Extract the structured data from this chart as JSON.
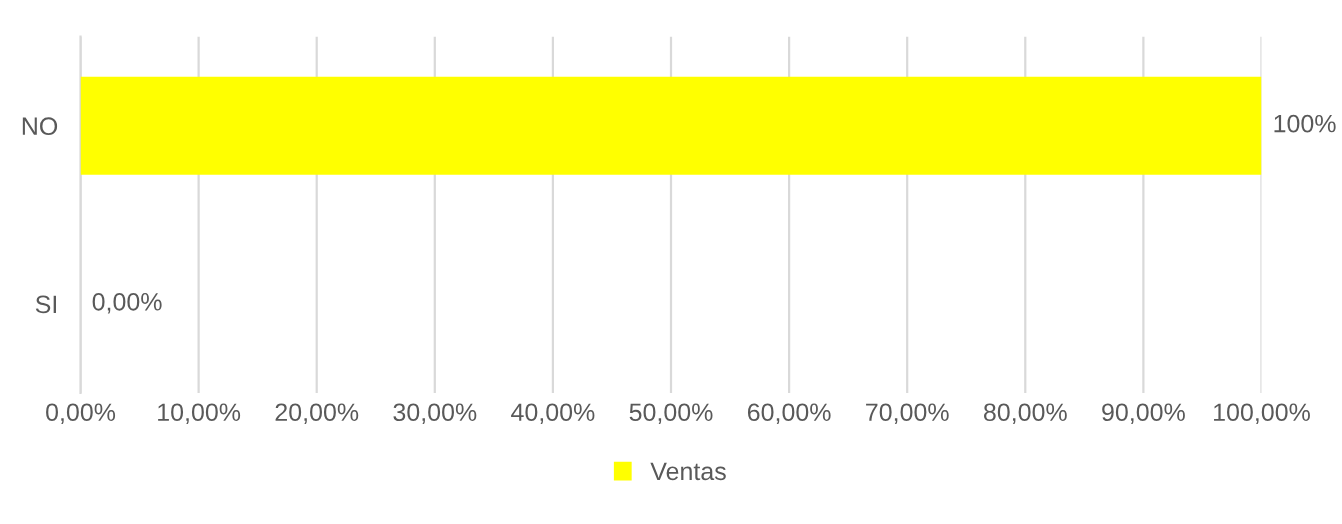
{
  "chart_data": {
    "type": "bar",
    "orientation": "horizontal",
    "categories": [
      "NO",
      "SI"
    ],
    "series": [
      {
        "name": "Ventas",
        "color": "#ffff00",
        "values": [
          100,
          0
        ],
        "value_labels": [
          "100%",
          "0,00%"
        ]
      }
    ],
    "xlim": [
      0,
      100
    ],
    "xticks": [
      {
        "value": 0,
        "label": "0,00%"
      },
      {
        "value": 10,
        "label": "10,00%"
      },
      {
        "value": 20,
        "label": "20,00%"
      },
      {
        "value": 30,
        "label": "30,00%"
      },
      {
        "value": 40,
        "label": "40,00%"
      },
      {
        "value": 50,
        "label": "50,00%"
      },
      {
        "value": 60,
        "label": "60,00%"
      },
      {
        "value": 70,
        "label": "70,00%"
      },
      {
        "value": 80,
        "label": "80,00%"
      },
      {
        "value": 90,
        "label": "90,00%"
      },
      {
        "value": 100,
        "label": "100,00%"
      }
    ],
    "grid": "x",
    "legend": "bottom"
  }
}
